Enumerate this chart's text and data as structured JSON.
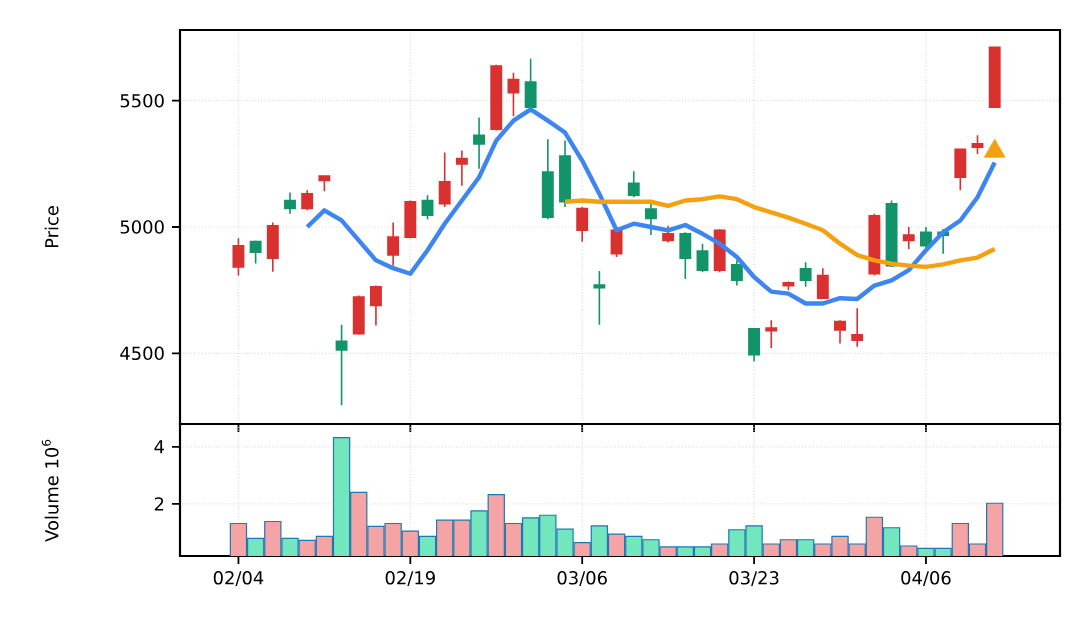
{
  "chart_data": [
    {
      "type": "candlestick",
      "ylabel": "Price",
      "categories": [
        null,
        null,
        null,
        null,
        null,
        null,
        null,
        null,
        null,
        null,
        null,
        null,
        null,
        null,
        null,
        null,
        null,
        null,
        null,
        null,
        null,
        null,
        null,
        null,
        null,
        null,
        null,
        null,
        null,
        null,
        null,
        null,
        null,
        null,
        null,
        null,
        null,
        null,
        null,
        null,
        null,
        null,
        null,
        null,
        null
      ],
      "ohlc": [
        [
          4842,
          4955,
          4808,
          4926
        ],
        [
          4942,
          4947,
          4855,
          4900
        ],
        [
          4876,
          5018,
          4823,
          5005
        ],
        [
          5105,
          5137,
          5052,
          5073
        ],
        [
          5073,
          5145,
          5066,
          5131
        ],
        [
          5184,
          5205,
          5142,
          5202
        ],
        [
          4547,
          4613,
          4294,
          4513
        ],
        [
          4578,
          4729,
          4573,
          4723
        ],
        [
          4689,
          4768,
          4610,
          4763
        ],
        [
          4889,
          5018,
          4847,
          4960
        ],
        [
          4960,
          5105,
          4955,
          5100
        ],
        [
          5105,
          5126,
          5031,
          5047
        ],
        [
          5092,
          5295,
          5079,
          5179
        ],
        [
          5250,
          5303,
          5163,
          5271
        ],
        [
          5363,
          5434,
          5231,
          5329
        ],
        [
          5387,
          5642,
          5382,
          5637
        ],
        [
          5532,
          5611,
          5439,
          5584
        ],
        [
          5574,
          5666,
          5461,
          5474
        ],
        [
          5218,
          5347,
          5031,
          5039
        ],
        [
          5281,
          5342,
          5079,
          5100
        ],
        [
          4987,
          5079,
          4942,
          5073
        ],
        [
          4770,
          4826,
          4613,
          4760
        ],
        [
          4894,
          4992,
          4881,
          4987
        ],
        [
          5173,
          5221,
          5118,
          5126
        ],
        [
          5071,
          5092,
          4968,
          5034
        ],
        [
          4947,
          5005,
          4939,
          4973
        ],
        [
          4973,
          4979,
          4794,
          4876
        ],
        [
          4905,
          4934,
          4821,
          4829
        ],
        [
          4829,
          4992,
          4821,
          4987
        ],
        [
          4850,
          4868,
          4768,
          4789
        ],
        [
          4597,
          4597,
          4468,
          4494
        ],
        [
          4589,
          4631,
          4521,
          4600
        ],
        [
          4768,
          4784,
          4750,
          4779
        ],
        [
          4834,
          4860,
          4763,
          4789
        ],
        [
          4718,
          4837,
          4715,
          4808
        ],
        [
          4592,
          4631,
          4539,
          4626
        ],
        [
          4552,
          4678,
          4526,
          4573
        ],
        [
          4815,
          5052,
          4808,
          5044
        ],
        [
          5092,
          5105,
          4842,
          4847
        ],
        [
          4947,
          5000,
          4913,
          4968
        ],
        [
          4979,
          5000,
          4916,
          4926
        ],
        [
          4979,
          4992,
          4894,
          4968
        ],
        [
          5197,
          5308,
          5145,
          5308
        ],
        [
          5316,
          5363,
          5289,
          5329
        ],
        [
          5474,
          5711,
          5474,
          5711
        ]
      ],
      "colors": [
        "#d93030",
        "#12946a",
        "#d93030",
        "#12946a",
        "#d93030",
        "#d93030",
        "#12946a",
        "#d93030",
        "#d93030",
        "#d93030",
        "#d93030",
        "#12946a",
        "#d93030",
        "#d93030",
        "#12946a",
        "#d93030",
        "#d93030",
        "#12946a",
        "#12946a",
        "#12946a",
        "#d93030",
        "#12946a",
        "#d93030",
        "#12946a",
        "#12946a",
        "#d93030",
        "#12946a",
        "#12946a",
        "#d93030",
        "#12946a",
        "#12946a",
        "#d93030",
        "#d93030",
        "#12946a",
        "#d93030",
        "#d93030",
        "#d93030",
        "#d93030",
        "#12946a",
        "#d93030",
        "#12946a",
        "#12946a",
        "#d93030",
        "#d93030",
        "#d93030"
      ],
      "series": [
        {
          "type": "line",
          "color": "#3d85f0",
          "values": [
            null,
            null,
            null,
            null,
            5000,
            5066,
            5026,
            4947,
            4868,
            4837,
            4815,
            4908,
            5013,
            5105,
            5197,
            5342,
            5421,
            5466,
            5421,
            5374,
            5263,
            5131,
            4987,
            5013,
            5000,
            4987,
            5008,
            4973,
            4934,
            4881,
            4802,
            4744,
            4736,
            4697,
            4697,
            4718,
            4715,
            4768,
            4789,
            4829,
            4908,
            4979,
            5026,
            5118,
            5255
          ]
        },
        {
          "type": "line",
          "color": "#f5a00f",
          "values": [
            null,
            null,
            null,
            null,
            null,
            null,
            null,
            null,
            null,
            null,
            null,
            null,
            null,
            null,
            null,
            null,
            null,
            null,
            null,
            5100,
            5105,
            5100,
            5100,
            5100,
            5100,
            5084,
            5105,
            5110,
            5121,
            5110,
            5079,
            5058,
            5037,
            5013,
            4987,
            4934,
            4889,
            4868,
            4855,
            4847,
            4842,
            4852,
            4868,
            4879,
            4913
          ]
        },
        {
          "type": "scatter",
          "marker": "triangle",
          "color": "#f5a00f",
          "values": [
            null,
            null,
            null,
            null,
            null,
            null,
            null,
            null,
            null,
            null,
            null,
            null,
            null,
            null,
            null,
            null,
            null,
            null,
            null,
            null,
            null,
            null,
            null,
            null,
            null,
            null,
            null,
            null,
            null,
            null,
            null,
            null,
            null,
            null,
            null,
            null,
            null,
            null,
            null,
            null,
            null,
            null,
            null,
            null,
            5300
          ]
        }
      ],
      "ylim": [
        4220,
        5780
      ],
      "yticks": [
        4500,
        5000,
        5500
      ],
      "grid": true
    },
    {
      "type": "bar",
      "ylabel": "Volume  10$^{6}$",
      "categories": [
        "02/04",
        null,
        null,
        null,
        null,
        null,
        null,
        null,
        null,
        null,
        "02/19",
        null,
        null,
        null,
        null,
        null,
        null,
        null,
        null,
        null,
        "03/06",
        null,
        null,
        null,
        null,
        null,
        null,
        null,
        null,
        null,
        "03/23",
        null,
        null,
        null,
        null,
        null,
        null,
        null,
        null,
        null,
        "04/06",
        null,
        null,
        null,
        null
      ],
      "values": [
        1.31,
        0.79,
        1.38,
        0.79,
        0.72,
        0.86,
        4.32,
        2.4,
        1.21,
        1.31,
        1.04,
        0.86,
        1.43,
        1.43,
        1.75,
        2.32,
        1.31,
        1.51,
        1.6,
        1.11,
        0.64,
        1.23,
        0.94,
        0.86,
        0.74,
        0.49,
        0.49,
        0.49,
        0.59,
        1.09,
        1.23,
        0.59,
        0.74,
        0.74,
        0.59,
        0.86,
        0.59,
        1.53,
        1.16,
        0.52,
        0.44,
        0.44,
        1.31,
        0.59,
        2.02
      ],
      "colors": [
        "#f4a4a4",
        "#72e6bc",
        "#f4a4a4",
        "#72e6bc",
        "#f4a4a4",
        "#f4a4a4",
        "#72e6bc",
        "#f4a4a4",
        "#f4a4a4",
        "#f4a4a4",
        "#f4a4a4",
        "#72e6bc",
        "#f4a4a4",
        "#f4a4a4",
        "#72e6bc",
        "#f4a4a4",
        "#f4a4a4",
        "#72e6bc",
        "#72e6bc",
        "#72e6bc",
        "#f4a4a4",
        "#72e6bc",
        "#f4a4a4",
        "#72e6bc",
        "#72e6bc",
        "#f4a4a4",
        "#72e6bc",
        "#72e6bc",
        "#f4a4a4",
        "#72e6bc",
        "#72e6bc",
        "#f4a4a4",
        "#f4a4a4",
        "#72e6bc",
        "#f4a4a4",
        "#f4a4a4",
        "#f4a4a4",
        "#f4a4a4",
        "#72e6bc",
        "#f4a4a4",
        "#72e6bc",
        "#72e6bc",
        "#f4a4a4",
        "#f4a4a4",
        "#f4a4a4"
      ],
      "ylim": [
        0.17,
        4.8
      ],
      "yticks": [
        2,
        4
      ],
      "grid": true
    }
  ]
}
